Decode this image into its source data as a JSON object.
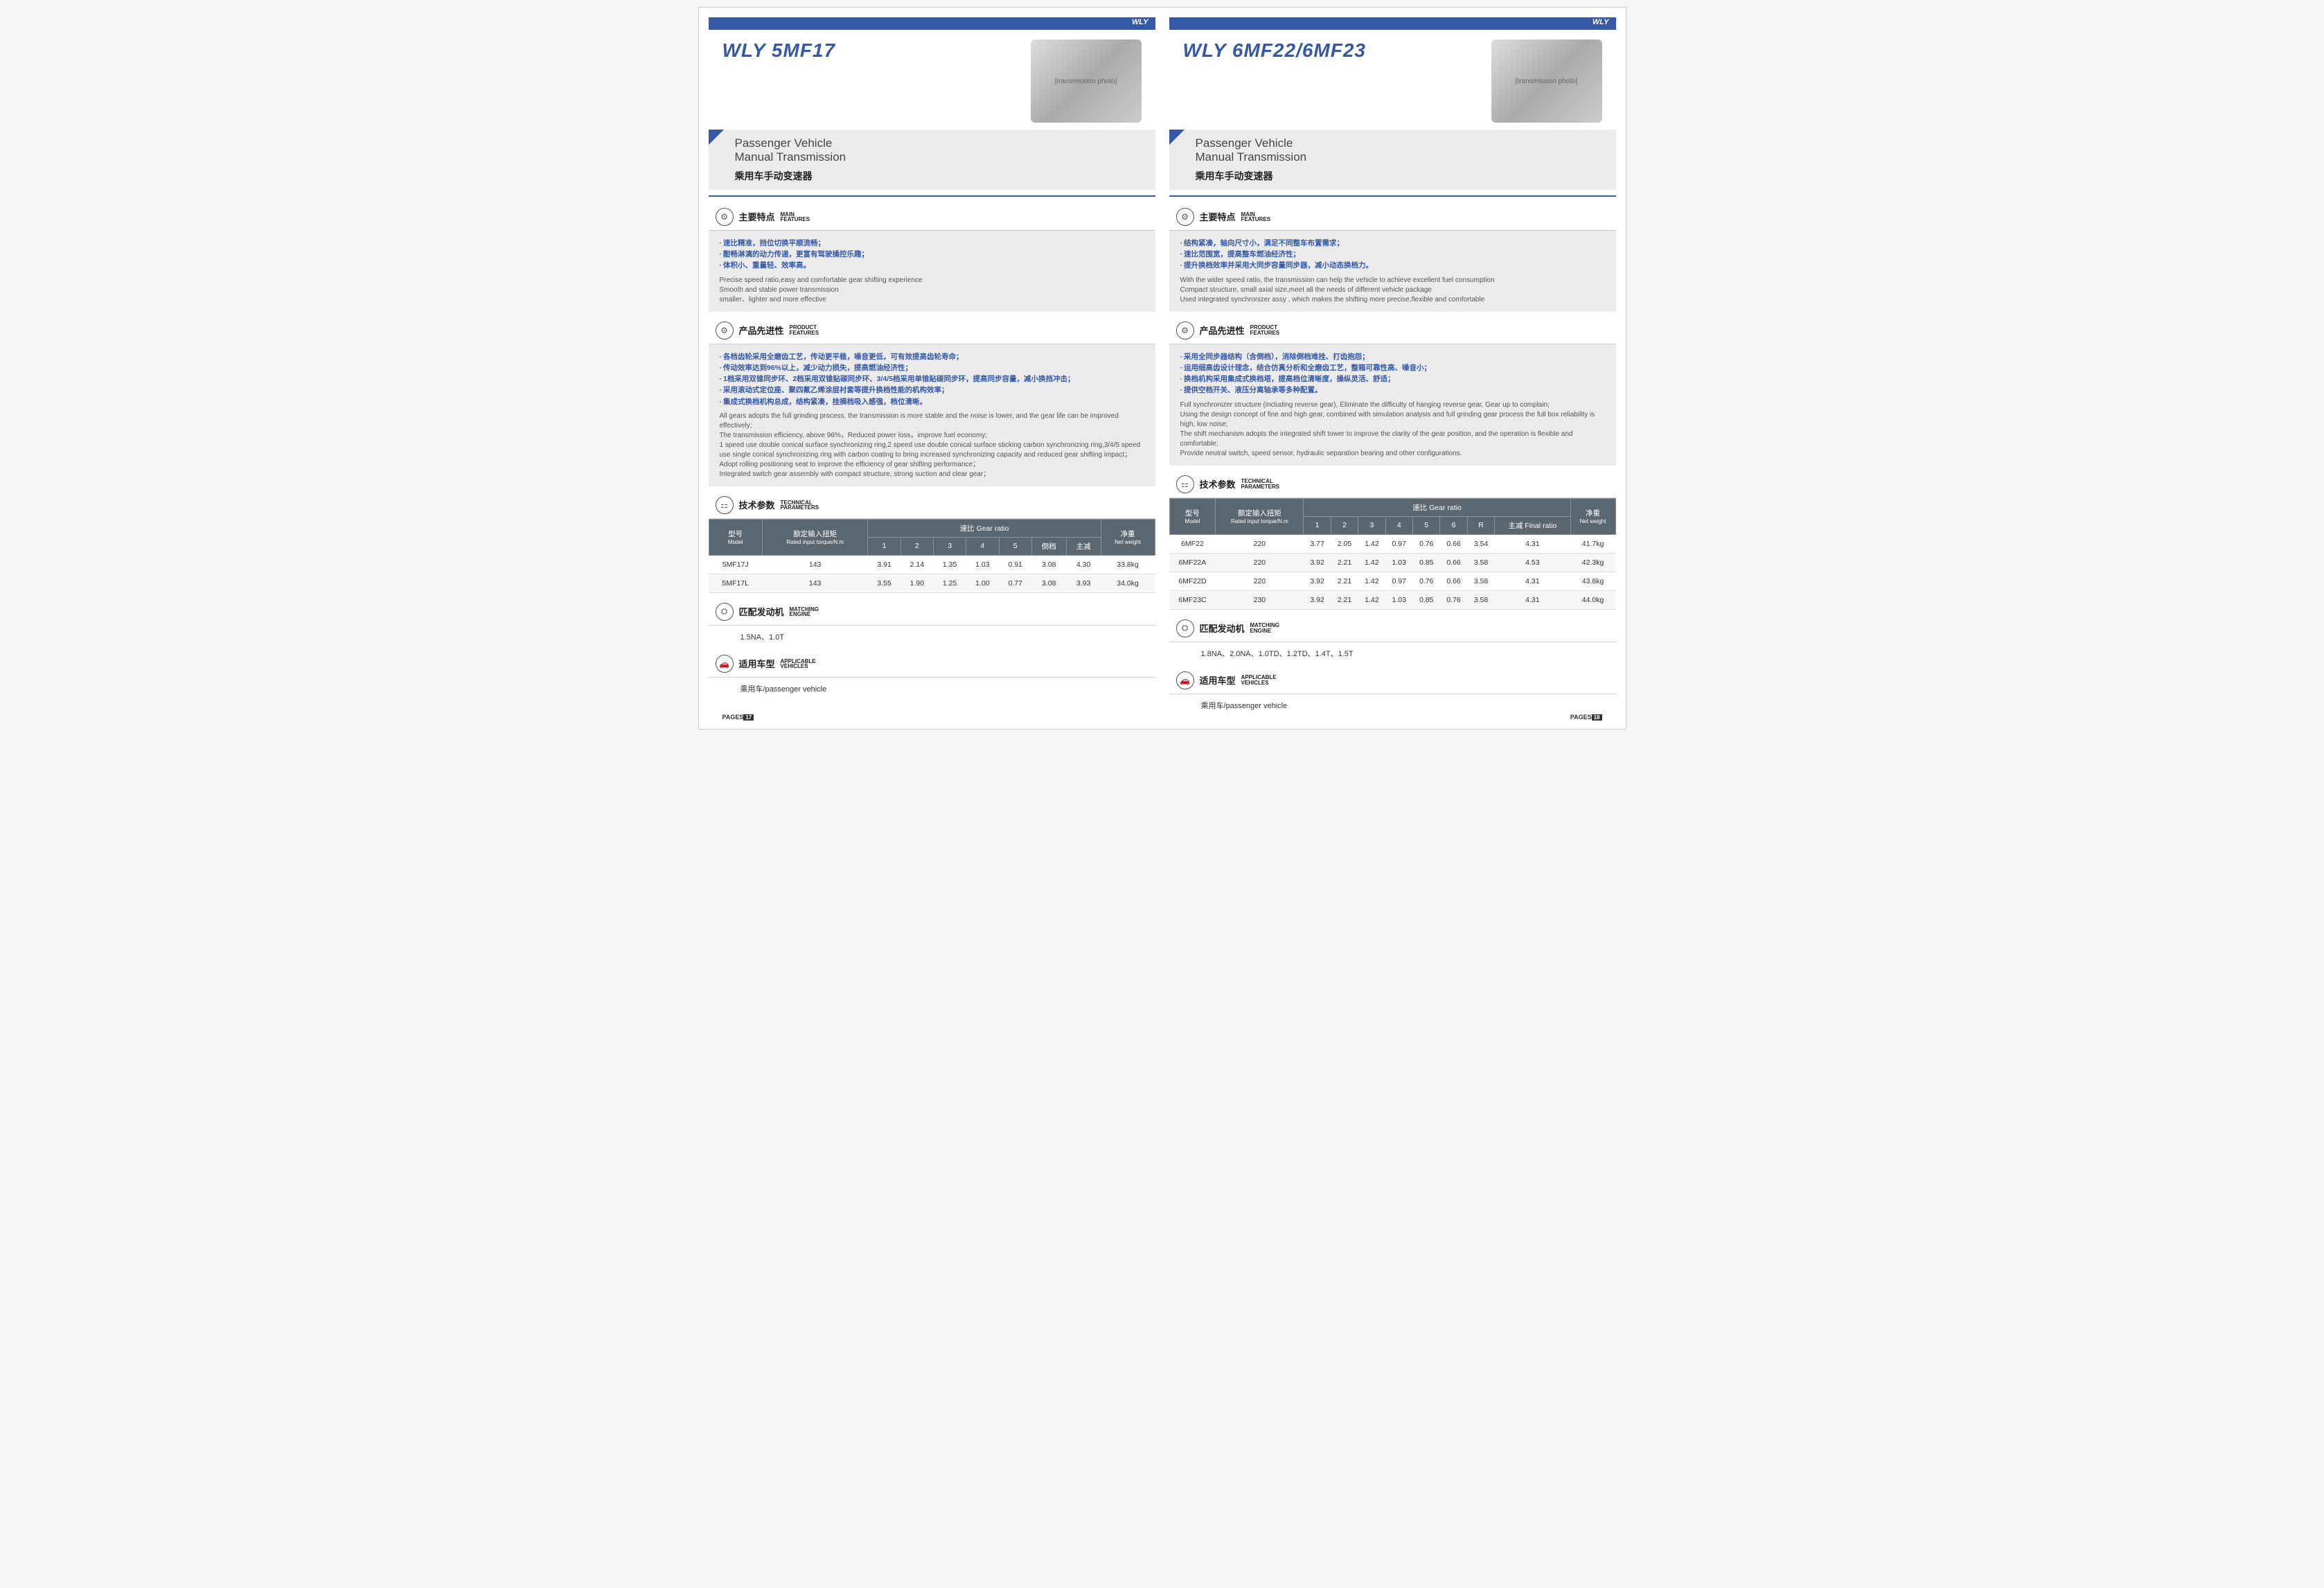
{
  "brand": "WLY",
  "left": {
    "title": "WLY 5MF17",
    "subtitle_en": "Passenger Vehicle\nManual Transmission",
    "subtitle_cn": "乘用车手动变速器",
    "features": {
      "head_cn": "主要特点",
      "head_en": "MAIN\nFEATURES",
      "cn": [
        "速比精准，挡位切换平顺流畅；",
        "酣畅淋漓的动力传递，更富有驾驶操控乐趣；",
        "体积小、重量轻、效率高。"
      ],
      "en": "Precise speed ratio,easy and comfortable gear shifting experience\nSmooth and stable power transmission\nsmaller、lighter and more effective"
    },
    "product": {
      "head_cn": "产品先进性",
      "head_en": "PRODUCT\nFEATURES",
      "cn": [
        "各档齿轮采用全磨齿工艺，传动更平稳，噪音更低，可有效提高齿轮寿命；",
        "传动效率达到96%以上，减少动力损失，提高燃油经济性；",
        "1档采用双锥同步环、2档采用双锥贴碳同步环、3/4/5档采用单锥贴碳同步环，提高同步容量，减小换挡冲击；",
        "采用滚动式定位座、聚四氟乙烯涂层衬套等提升换档性能的机构效率；",
        "集成式换档机构总成，结构紧凑，挂摘档吸入感强，档位清晰。"
      ],
      "en": "All gears adopts the full grinding process, the transmission is more stable and the noise is lower, and the gear life can be improved effectively;\nThe transmission efficiency, above 96%，Reduced power loss，improve fuel economy;\n1 speed use double conical surface synchronizing ring,2 speed use double conical surface sticking carbon synchronizing ring,3/4/5 speed use single conical synchronizing ring with carbon coating to bring increased synchronizing capacity and reduced gear shifting impact；\nAdopt rolling positioning seat to improve the efficiency of gear shifting performance；\nIntegrated switch gear assembly with compact structure, strong suction and clear gear；"
    },
    "tech": {
      "head_cn": "技术参数",
      "head_en": "TECHNICAL\nPARAMETERS",
      "cols": {
        "model": "型号",
        "model_en": "Model",
        "torque": "额定输入扭矩",
        "torque_en": "Rated input torque/N.m",
        "ratio": "速比 Gear ratio",
        "gears": [
          "1",
          "2",
          "3",
          "4",
          "5",
          "倒档",
          "主减"
        ],
        "weight": "净重",
        "weight_en": "Net weight"
      },
      "rows": [
        {
          "m": "5MF17J",
          "t": "143",
          "g": [
            "3.91",
            "2.14",
            "1.35",
            "1.03",
            "0.91",
            "3.08",
            "4.30"
          ],
          "w": "33.8kg"
        },
        {
          "m": "5MF17L",
          "t": "143",
          "g": [
            "3.55",
            "1.90",
            "1.25",
            "1.00",
            "0.77",
            "3.08",
            "3.93"
          ],
          "w": "34.0kg"
        }
      ]
    },
    "engine": {
      "head_cn": "匹配发动机",
      "head_en": "MATCHING\nENGINE",
      "text": "1.5NA、1.0T"
    },
    "vehicle": {
      "head_cn": "适用车型",
      "head_en": "APPLICABLE\nVEHICLES",
      "text": "乘用车/passenger vehicle"
    },
    "pagelabel": "PAGES",
    "pagenum": "17"
  },
  "right": {
    "title": "WLY 6MF22/6MF23",
    "subtitle_en": "Passenger Vehicle\nManual Transmission",
    "subtitle_cn": "乘用车手动变速器",
    "features": {
      "head_cn": "主要特点",
      "head_en": "MAIN\nFEATURES",
      "cn": [
        "结构紧凑，轴向尺寸小，满足不同整车布置需求；",
        "速比范围宽，提高整车燃油经济性；",
        "提升换档效率并采用大同步容量同步器，减小动态换档力。"
      ],
      "en": "With the wider speed ratio, the transmission can help the vehicle to achieve excellent fuel consumption\nCompact structure, small axial size,meet all the needs of different vehicle package\nUsed integrated synchronizer assy , which makes the shifting more precise,flexible and comfortable"
    },
    "product": {
      "head_cn": "产品先进性",
      "head_en": "PRODUCT\nFEATURES",
      "cn": [
        "采用全同步器结构（含倒档），消除倒档难挂、打齿抱怨；",
        "运用细高齿设计理念，结合仿真分析和全磨齿工艺，整箱可靠性高、噪音小；",
        "换档机构采用集成式换档塔，提高档位清晰度，操纵灵活、舒适；",
        "提供空档开关、液压分离轴承等多种配置。"
      ],
      "en": "Full synchronizer structure (including reverse gear), Eliminate the difficulty of hanging reverse gear, Gear up to complain;\nUsing the design concept of fine and high gear, combined with simulation analysis and full grinding gear process the full box reliability is high, low noise;\nThe shift mechanism adopts the integrated shift tower to improve the clarity of the gear position, and the operation is flexible and comfortable;\nProvide neutral switch, speed sensor, hydraulic separation bearing and other configurations."
    },
    "tech": {
      "head_cn": "技术参数",
      "head_en": "TECHNICAL\nPARAMETERS",
      "cols": {
        "model": "型号",
        "model_en": "Model",
        "torque": "额定输入扭矩",
        "torque_en": "Rated input torque/N.m",
        "ratio": "速比 Gear ratio",
        "gears": [
          "1",
          "2",
          "3",
          "4",
          "5",
          "6",
          "R",
          "主减 Final ratio"
        ],
        "weight": "净重",
        "weight_en": "Net weight"
      },
      "rows": [
        {
          "m": "6MF22",
          "t": "220",
          "g": [
            "3.77",
            "2.05",
            "1.42",
            "0.97",
            "0.76",
            "0.66",
            "3.54",
            "4.31"
          ],
          "w": "41.7kg"
        },
        {
          "m": "6MF22A",
          "t": "220",
          "g": [
            "3.92",
            "2.21",
            "1.42",
            "1.03",
            "0.85",
            "0.66",
            "3.58",
            "4.53"
          ],
          "w": "42.3kg"
        },
        {
          "m": "6MF22D",
          "t": "220",
          "g": [
            "3.92",
            "2.21",
            "1.42",
            "0.97",
            "0.76",
            "0.66",
            "3.58",
            "4.31"
          ],
          "w": "43.8kg"
        },
        {
          "m": "6MF23C",
          "t": "230",
          "g": [
            "3.92",
            "2.21",
            "1.42",
            "1.03",
            "0.85",
            "0.76",
            "3.58",
            "4.31"
          ],
          "w": "44.0kg"
        }
      ]
    },
    "engine": {
      "head_cn": "匹配发动机",
      "head_en": "MATCHING\nENGINE",
      "text": "1.8NA、2.0NA、1.0TD、1.2TD、1.4T、1.5T"
    },
    "vehicle": {
      "head_cn": "适用车型",
      "head_en": "APPLICABLE\nVEHICLES",
      "text": "乘用车/passenger vehicle"
    },
    "pagelabel": "PAGES",
    "pagenum": "18"
  }
}
